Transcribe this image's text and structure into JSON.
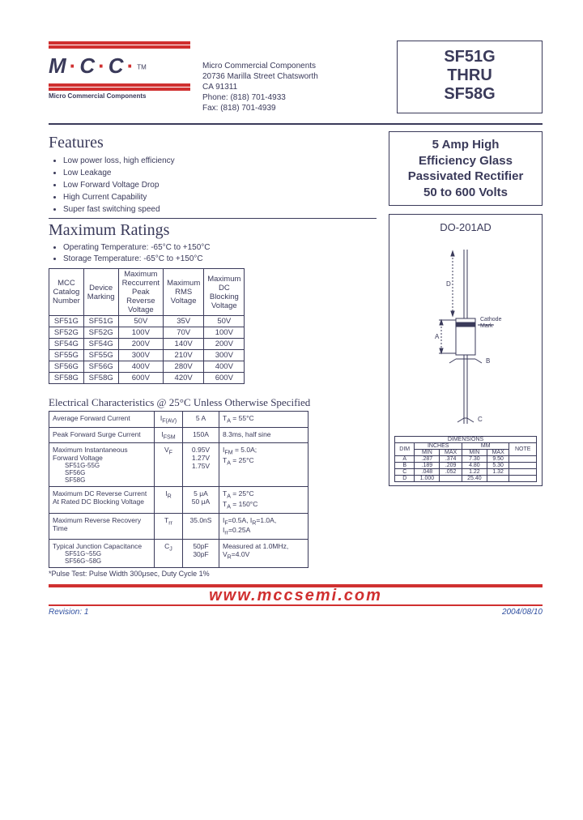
{
  "logo": {
    "letters": "M·C·C",
    "sub": "Micro Commercial Components",
    "tm": "TM"
  },
  "address": {
    "name": "Micro Commercial Components",
    "street": "20736 Marilla Street Chatsworth",
    "city": "CA 91311",
    "phone": "Phone: (818) 701-4933",
    "fax": "Fax:     (818) 701-4939"
  },
  "title": {
    "l1": "SF51G",
    "l2": "THRU",
    "l3": "SF58G"
  },
  "description": {
    "l1": "5 Amp High",
    "l2": "Efficiency Glass",
    "l3": "Passivated Rectifier",
    "l4": "50 to 600 Volts"
  },
  "package_name": "DO-201AD",
  "features": {
    "heading": "Features",
    "items": [
      "Low power loss, high efficiency",
      "Low Leakage",
      "Low Forward Voltage Drop",
      "High Current Capability",
      "Super fast switching speed"
    ]
  },
  "ratings": {
    "heading": "Maximum Ratings",
    "notes": [
      "Operating Temperature: -65°C to +150°C",
      "Storage Temperature: -65°C to +150°C"
    ],
    "headers": [
      "MCC Catalog Number",
      "Device Marking",
      "Maximum Reccurrent Peak Reverse Voltage",
      "Maximum RMS Voltage",
      "Maximum DC Blocking Voltage"
    ],
    "rows": [
      [
        "SF51G",
        "SF51G",
        "50V",
        "35V",
        "50V"
      ],
      [
        "SF52G",
        "SF52G",
        "100V",
        "70V",
        "100V"
      ],
      [
        "SF54G",
        "SF54G",
        "200V",
        "140V",
        "200V"
      ],
      [
        "SF55G",
        "SF55G",
        "300V",
        "210V",
        "300V"
      ],
      [
        "SF56G",
        "SF56G",
        "400V",
        "280V",
        "400V"
      ],
      [
        "SF58G",
        "SF58G",
        "600V",
        "420V",
        "600V"
      ]
    ]
  },
  "elec": {
    "heading": "Electrical Characteristics @ 25°C Unless Otherwise Specified",
    "rows": [
      {
        "p": "Average Forward Current",
        "sym": "I",
        "sub": "F(AV)",
        "val": "5 A",
        "cond": "T<sub>A</sub> = 55°C"
      },
      {
        "p": "Peak Forward   Surge Current",
        "sym": "I",
        "sub": "FSM",
        "val": "150A",
        "cond": "8.3ms, half sine"
      },
      {
        "p": "Maximum Instantaneous Forward Voltage",
        "subp": "SF51G-55G<br>SF56G<br>SF58G",
        "sym": "V",
        "sub": "F",
        "val": "0.95V<br>1.27V<br>1.75V",
        "cond": "I<sub>FM</sub> = 5.0A;<br>T<sub>A</sub> = 25°C"
      },
      {
        "p": "Maximum DC Reverse Current At Rated DC Blocking Voltage",
        "sym": "I",
        "sub": "R",
        "val": "5 μA<br>50 μA",
        "cond": "T<sub>A</sub> = 25°C<br>T<sub>A</sub> = 150°C"
      },
      {
        "p": "Maximum Reverse Recovery Time",
        "sym": "T",
        "sub": "rr",
        "val": "35.0nS",
        "cond": "I<sub>F</sub>=0.5A, I<sub>R</sub>=1.0A,<br>I<sub>rr</sub>=0.25A"
      },
      {
        "p": "Typical Junction Capacitance",
        "subp": "SF51G~55G<br>SF56G~58G",
        "sym": "C",
        "sub": "J",
        "val": "50pF<br>30pF",
        "cond": "Measured at 1.0MHz, V<sub>R</sub>=4.0V"
      }
    ],
    "footnote": "*Pulse Test: Pulse Width 300μsec, Duty Cycle 1%"
  },
  "dimensions": {
    "title": "DIMENSIONS",
    "unit_headers": [
      "INCHES",
      "MM"
    ],
    "sub_headers": [
      "DIM",
      "MIN",
      "MAX",
      "MIN",
      "MAX",
      "NOTE"
    ],
    "rows": [
      [
        "A",
        ".287",
        ".374",
        "7.30",
        "9.50",
        ""
      ],
      [
        "B",
        ".189",
        ".209",
        "4.80",
        "5.30",
        ""
      ],
      [
        "C",
        ".048",
        ".052",
        "1.22",
        "1.32",
        ""
      ],
      [
        "D",
        "1.000",
        "",
        "25.40",
        "",
        ""
      ]
    ]
  },
  "footer": {
    "url": "www.mccsemi.com",
    "rev": "Revision: 1",
    "date": "2004/08/10"
  },
  "colors": {
    "red": "#d03030",
    "text": "#3a3a5a",
    "blue": "#3050a0"
  }
}
